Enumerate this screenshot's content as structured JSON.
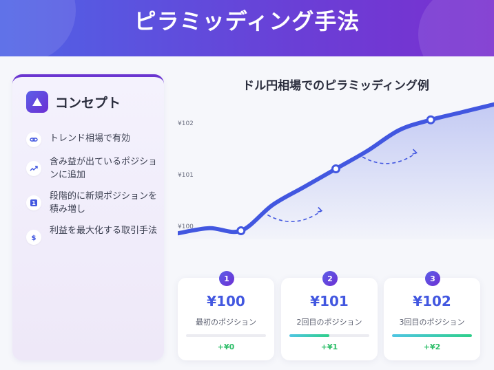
{
  "header": {
    "title": "ピラミッディング手法"
  },
  "concept": {
    "title": "コンセプト",
    "items": [
      {
        "icon": "link-icon",
        "text": "トレンド相場で有効"
      },
      {
        "icon": "trending-up-icon",
        "text": "含み益が出ているポジションに追加"
      },
      {
        "icon": "number-one-icon",
        "text": "段階的に新規ポジションを積み増し"
      },
      {
        "icon": "dollar-icon",
        "text": "利益を最大化する取引手法"
      }
    ]
  },
  "chart_title": "ドル円相場でのピラミッディング例",
  "chart_data": {
    "type": "line",
    "title": "ドル円相場でのピラミッディング例",
    "y_tick_labels": [
      "¥102",
      "¥101",
      "¥100"
    ],
    "y_ticks": [
      102,
      101,
      100
    ],
    "ylim": [
      99.6,
      102.4
    ],
    "x": [
      0,
      1,
      2,
      3,
      4,
      5,
      6,
      7,
      8,
      9,
      10
    ],
    "series": [
      {
        "values": [
          99.85,
          99.95,
          99.9,
          100.4,
          100.75,
          101.1,
          101.45,
          101.85,
          102.05,
          102.2,
          102.35
        ]
      }
    ],
    "entry_points": [
      {
        "x": 2,
        "y": 99.9,
        "label": "1"
      },
      {
        "x": 5,
        "y": 101.1,
        "label": "2"
      },
      {
        "x": 8,
        "y": 102.05,
        "label": "3"
      }
    ],
    "grid": false,
    "accent": "#4257e0"
  },
  "cards": [
    {
      "num": "1",
      "price": "¥100",
      "label": "最初のポジション",
      "gain": "+¥0",
      "progress": 0.0
    },
    {
      "num": "2",
      "price": "¥101",
      "label": "2回目のポジション",
      "gain": "+¥1",
      "progress": 0.5
    },
    {
      "num": "3",
      "price": "¥102",
      "label": "3回目のポジション",
      "gain": "+¥2",
      "progress": 1.0
    }
  ],
  "colors": {
    "accent": "#4257e0",
    "purple": "#6d2fd3",
    "green": "#2fbe6a"
  }
}
